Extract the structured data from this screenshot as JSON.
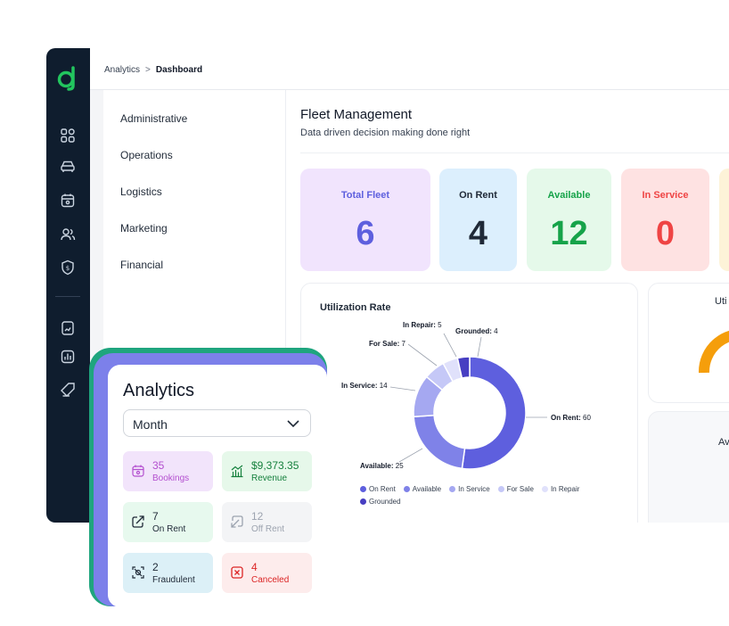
{
  "breadcrumb": {
    "parent": "Analytics",
    "separator": ">",
    "current": "Dashboard"
  },
  "submenu": [
    "Administrative",
    "Operations",
    "Logistics",
    "Marketing",
    "Financial"
  ],
  "page": {
    "title": "Fleet Management",
    "subtitle": "Data driven decision making done right"
  },
  "kpis": [
    {
      "label": "Total Fleet",
      "value": "6",
      "bg": "#f1e4fd",
      "color": "#5e5fde"
    },
    {
      "label": "On Rent",
      "value": "4",
      "bg": "#dceffd",
      "color": "#1f2937"
    },
    {
      "label": "Available",
      "value": "12",
      "bg": "#e5f9ea",
      "color": "#16a34a"
    },
    {
      "label": "In Service",
      "value": "0",
      "bg": "#fee2e2",
      "color": "#ef4444"
    }
  ],
  "utilization": {
    "title": "Utilization Rate",
    "chart_data": {
      "type": "pie",
      "categories": [
        "On Rent",
        "Available",
        "In Service",
        "For Sale",
        "In Repair",
        "Grounded"
      ],
      "values": [
        60,
        25,
        14,
        7,
        5,
        4
      ],
      "colors": [
        "#5e5fde",
        "#7f82e8",
        "#a5a8f1",
        "#c5c8f7",
        "#e0e1fb",
        "#473ec2"
      ],
      "donut": true
    },
    "callouts": [
      {
        "name": "In Repair",
        "value": "5"
      },
      {
        "name": "Grounded",
        "value": "4"
      },
      {
        "name": "For Sale",
        "value": "7"
      },
      {
        "name": "In Service",
        "value": "14"
      },
      {
        "name": "On Rent",
        "value": "60"
      },
      {
        "name": "Available",
        "value": "25"
      }
    ],
    "legend": [
      "On Rent",
      "Available",
      "In Service",
      "For Sale",
      "In Repair",
      "Grounded"
    ]
  },
  "side_cards": {
    "top_title_partial": "Uti",
    "bottom_title_partial": "Av"
  },
  "analytics": {
    "title": "Analytics",
    "period": "Month",
    "tiles": [
      {
        "value": "35",
        "label": "Bookings",
        "bg": "#f2e4fb",
        "color": "#b34fcf",
        "icon": "calendar-icon"
      },
      {
        "value": "$9,373.35",
        "label": "Revenue",
        "bg": "#e6f8ea",
        "color": "#15803d",
        "icon": "revenue-chart-icon"
      },
      {
        "value": "7",
        "label": "On Rent",
        "bg": "#e7f9ee",
        "color": "#1f2937",
        "icon": "on-rent-icon"
      },
      {
        "value": "12",
        "label": "Off Rent",
        "bg": "#f3f4f6",
        "color": "#9ca3af",
        "icon": "off-rent-icon"
      },
      {
        "value": "2",
        "label": "Fraudulent",
        "bg": "#dcf0f7",
        "color": "#1f2937",
        "icon": "fraud-icon"
      },
      {
        "value": "4",
        "label": "Canceled",
        "bg": "#fdecec",
        "color": "#dc2626",
        "icon": "cancel-icon"
      }
    ]
  }
}
